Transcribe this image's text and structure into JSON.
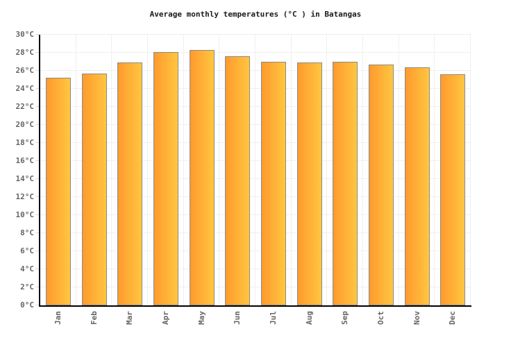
{
  "chart_data": {
    "type": "bar",
    "title": "Average monthly temperatures (°C ) in Batangas",
    "categories": [
      "Jan",
      "Feb",
      "Mar",
      "Apr",
      "May",
      "Jun",
      "Jul",
      "Aug",
      "Sep",
      "Oct",
      "Nov",
      "Dec"
    ],
    "values": [
      25.2,
      25.7,
      26.9,
      28.1,
      28.3,
      27.6,
      27.0,
      26.9,
      27.0,
      26.7,
      26.4,
      25.6
    ],
    "unit": "°C",
    "xlabel": "",
    "ylabel": "",
    "ylim": [
      0,
      30
    ],
    "ytick_step": 2,
    "ytick_suffix": "°C",
    "grid": true,
    "legend_position": "none",
    "colors": {
      "bar_gradient_left": "#FF9A2E",
      "bar_gradient_right": "#FFC640",
      "bar_border": "#8A8A8A",
      "axis": "#000000",
      "gridline": "#EFEFEF",
      "tick": "#D9D9D9",
      "tick_label": "#666666",
      "title": "#1A1A1A",
      "background": "#FFFFFF"
    }
  }
}
